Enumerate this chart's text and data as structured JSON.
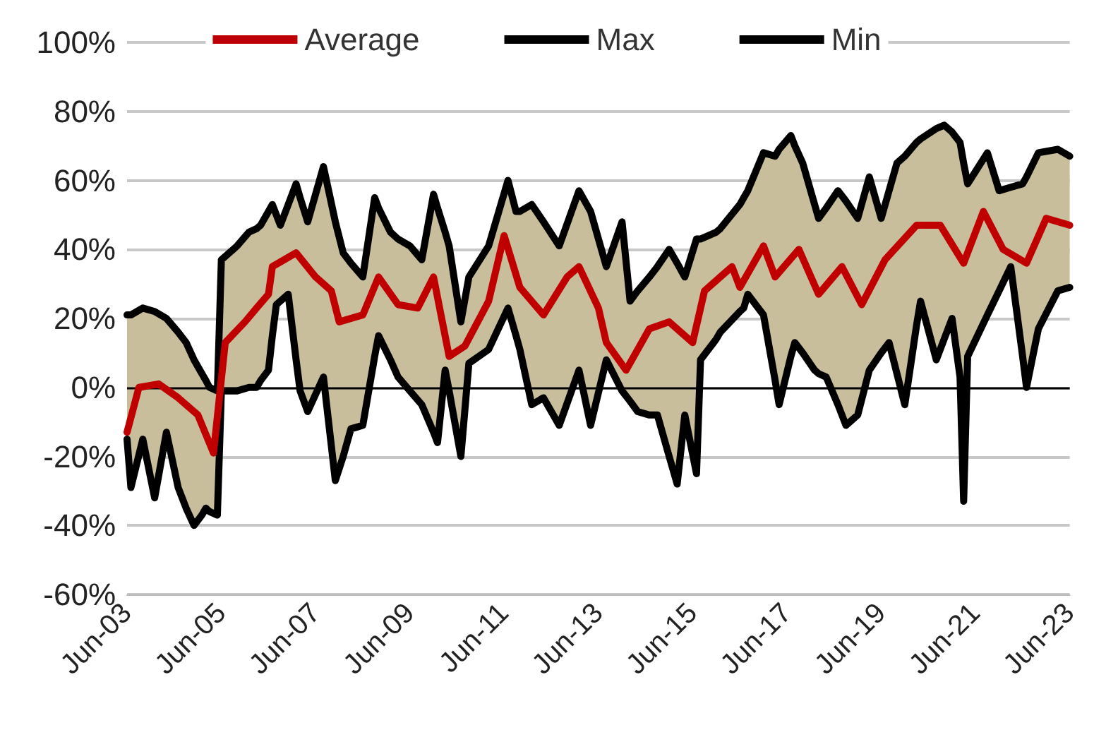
{
  "chart_data": {
    "type": "line",
    "x": [
      "2003-06",
      "2003-07",
      "2003-10",
      "2004-01",
      "2004-04",
      "2004-07",
      "2004-09",
      "2004-11",
      "2005-01",
      "2005-02",
      "2005-03",
      "2005-05",
      "2005-06",
      "2005-09",
      "2005-10",
      "2006-01",
      "2006-03",
      "2006-04",
      "2006-06",
      "2006-07",
      "2006-08",
      "2006-09",
      "2006-11",
      "2007-01",
      "2007-02",
      "2007-04",
      "2007-08",
      "2007-11",
      "2008-01",
      "2008-03",
      "2008-06",
      "2008-09",
      "2008-10",
      "2009-01",
      "2009-03",
      "2009-06",
      "2009-09",
      "2009-12",
      "2010-01",
      "2010-03",
      "2010-04",
      "2010-07",
      "2010-09",
      "2011-02",
      "2011-07",
      "2011-09",
      "2011-10",
      "2012-01",
      "2012-04",
      "2012-08",
      "2013-01",
      "2013-04",
      "2013-08",
      "2013-12",
      "2014-02",
      "2014-04",
      "2014-07",
      "2014-09",
      "2014-12",
      "2015-02",
      "2015-04",
      "2015-07",
      "2015-08",
      "2015-12",
      "2016-01",
      "2016-06",
      "2016-07",
      "2016-08",
      "2016-12",
      "2017-03",
      "2017-04",
      "2017-07",
      "2017-08",
      "2017-10",
      "2018-01",
      "2018-02",
      "2018-04",
      "2018-07",
      "2018-09",
      "2018-12",
      "2019-03",
      "2019-06",
      "2019-08",
      "2019-10",
      "2019-12",
      "2020-03",
      "2020-04",
      "2020-08",
      "2020-10",
      "2020-12",
      "2021-02",
      "2021-03",
      "2021-04",
      "2021-09",
      "2021-12",
      "2022-03",
      "2022-06",
      "2022-07",
      "2022-10",
      "2023-03",
      "2023-06"
    ],
    "series": [
      {
        "name": "Average",
        "color": "#c00000",
        "x": [
          "2003-06",
          "2003-09",
          "2004-02",
          "2004-07",
          "2004-12",
          "2005-04",
          "2005-07",
          "2005-12",
          "2006-03",
          "2006-06",
          "2006-07",
          "2007-01",
          "2007-06",
          "2007-10",
          "2007-12",
          "2008-06",
          "2008-10",
          "2009-03",
          "2009-08",
          "2009-12",
          "2010-04",
          "2010-08",
          "2011-02",
          "2011-06",
          "2011-10",
          "2012-04",
          "2012-10",
          "2013-01",
          "2013-06",
          "2013-08",
          "2014-01",
          "2014-07",
          "2014-12",
          "2015-06",
          "2015-09",
          "2016-04",
          "2016-06",
          "2016-12",
          "2017-03",
          "2017-09",
          "2018-02",
          "2018-08",
          "2019-01",
          "2019-07",
          "2020-03",
          "2020-09",
          "2021-03",
          "2021-08",
          "2022-01",
          "2022-07",
          "2022-12",
          "2023-06"
        ],
        "values": [
          -13,
          0,
          1,
          -3,
          -8,
          -19,
          13,
          19,
          23,
          27,
          35,
          39,
          32,
          28,
          19,
          21,
          32,
          24,
          23,
          32,
          9,
          12,
          25,
          44,
          29,
          21,
          32,
          35,
          23,
          13,
          5,
          17,
          19,
          13,
          28,
          35,
          29,
          41,
          32,
          40,
          27,
          35,
          24,
          37,
          47,
          47,
          36,
          51,
          40,
          36,
          49,
          47
        ]
      },
      {
        "name": "Max",
        "color": "#000000",
        "values": [
          21,
          21,
          23,
          22,
          20,
          16,
          13,
          8,
          4,
          2,
          0,
          -1,
          37,
          40,
          41,
          45,
          46,
          47,
          51,
          53,
          50,
          47,
          53,
          59,
          55,
          48,
          64,
          48,
          39,
          36,
          32,
          55,
          52,
          45,
          43,
          41,
          37,
          56,
          52,
          45,
          41,
          19,
          32,
          41,
          60,
          51,
          51,
          53,
          48,
          41,
          57,
          51,
          35,
          48,
          25,
          28,
          32,
          35,
          40,
          36,
          32,
          43,
          43,
          45,
          46,
          53,
          55,
          57,
          68,
          67,
          69,
          73,
          70,
          65,
          53,
          49,
          52,
          57,
          54,
          49,
          61,
          49,
          57,
          65,
          67,
          71,
          72,
          75,
          76,
          74,
          71,
          65,
          59,
          68,
          57,
          58,
          59,
          61,
          68,
          69,
          67
        ],
        "upper": [
          21,
          21,
          23,
          22,
          20,
          16,
          13,
          8,
          4,
          2,
          0,
          -1,
          37,
          40,
          41,
          45,
          46,
          47,
          51,
          53,
          50,
          47,
          53,
          59,
          55,
          48,
          64,
          48,
          39,
          36,
          32,
          55,
          52,
          45,
          43,
          41,
          37,
          56,
          52,
          45,
          41,
          19,
          32,
          41,
          60,
          51,
          51,
          53,
          48,
          41,
          57,
          51,
          35,
          48,
          25,
          28,
          32,
          35,
          40,
          36,
          32,
          43,
          43,
          45,
          46,
          53,
          55,
          57,
          68,
          67,
          69,
          73,
          70,
          65,
          53,
          49,
          52,
          57,
          54,
          49,
          61,
          49,
          57,
          65,
          67,
          71,
          72,
          75,
          76,
          74,
          71,
          65,
          59,
          68,
          57,
          58,
          59,
          61,
          68,
          69,
          67
        ],
        "lower": [
          -15,
          -29,
          -15,
          -32,
          -13,
          -29,
          -35,
          -40,
          -37,
          -35,
          -36,
          -37,
          -1,
          -1,
          -1,
          0,
          0,
          2,
          5,
          15,
          24,
          25,
          27,
          8,
          -1,
          -7,
          3,
          -27,
          -20,
          -12,
          -11,
          9,
          15,
          8,
          3,
          -1,
          -5,
          -13,
          -16,
          5,
          -1,
          -20,
          7,
          11,
          23,
          15,
          11,
          -5,
          -3,
          -11,
          5,
          -11,
          8,
          -1,
          -4,
          -7,
          -8,
          -8,
          -20,
          -28,
          -8,
          -25,
          8,
          14,
          16,
          22,
          23,
          27,
          21,
          2,
          -5,
          9,
          13,
          10,
          5,
          4,
          3,
          -5,
          -11,
          -8,
          5,
          10,
          13,
          4,
          -5,
          18,
          25,
          8,
          14,
          20,
          3,
          -33,
          9,
          21,
          28,
          35,
          9,
          0,
          17,
          28,
          29
        ]
      },
      {
        "name": "Min",
        "color": "#000000",
        "values": [
          -15,
          -29,
          -15,
          -32,
          -13,
          -29,
          -35,
          -40,
          -37,
          -35,
          -36,
          -37,
          -1,
          -1,
          -1,
          0,
          0,
          2,
          5,
          15,
          24,
          25,
          27,
          8,
          -1,
          -7,
          3,
          -27,
          -20,
          -12,
          -11,
          9,
          15,
          8,
          3,
          -1,
          -5,
          -13,
          -16,
          5,
          -1,
          -20,
          7,
          11,
          23,
          15,
          11,
          -5,
          -3,
          -11,
          5,
          -11,
          8,
          -1,
          -4,
          -7,
          -8,
          -8,
          -20,
          -28,
          -8,
          -25,
          8,
          14,
          16,
          22,
          23,
          27,
          21,
          2,
          -5,
          9,
          13,
          10,
          5,
          4,
          3,
          -5,
          -11,
          -8,
          5,
          10,
          13,
          4,
          -5,
          18,
          25,
          8,
          14,
          20,
          3,
          -33,
          9,
          21,
          28,
          35,
          9,
          0,
          17,
          28,
          29
        ]
      }
    ],
    "xlim": [
      "2003-06",
      "2023-06"
    ],
    "xticks": [
      {
        "value": "2003-06",
        "label": "Jun-03"
      },
      {
        "value": "2005-06",
        "label": "Jun-05"
      },
      {
        "value": "2007-06",
        "label": "Jun-07"
      },
      {
        "value": "2009-06",
        "label": "Jun-09"
      },
      {
        "value": "2011-06",
        "label": "Jun-11"
      },
      {
        "value": "2013-06",
        "label": "Jun-13"
      },
      {
        "value": "2015-06",
        "label": "Jun-15"
      },
      {
        "value": "2017-06",
        "label": "Jun-17"
      },
      {
        "value": "2019-06",
        "label": "Jun-19"
      },
      {
        "value": "2021-06",
        "label": "Jun-21"
      },
      {
        "value": "2023-06",
        "label": "Jun-23"
      }
    ],
    "ylim": [
      -60,
      100
    ],
    "yticks": [
      {
        "value": -60,
        "label": "-60%"
      },
      {
        "value": -40,
        "label": "-40%"
      },
      {
        "value": -20,
        "label": "-20%"
      },
      {
        "value": 0,
        "label": "0%"
      },
      {
        "value": 20,
        "label": "20%"
      },
      {
        "value": 40,
        "label": "40%"
      },
      {
        "value": 60,
        "label": "60%"
      },
      {
        "value": 80,
        "label": "80%"
      },
      {
        "value": 100,
        "label": "100%"
      }
    ],
    "ref_lines": [
      {
        "axis": "y",
        "value": 0,
        "color": "#000000"
      }
    ],
    "grid": "y",
    "legend": "top",
    "marker": "none",
    "line_style": "solid"
  }
}
